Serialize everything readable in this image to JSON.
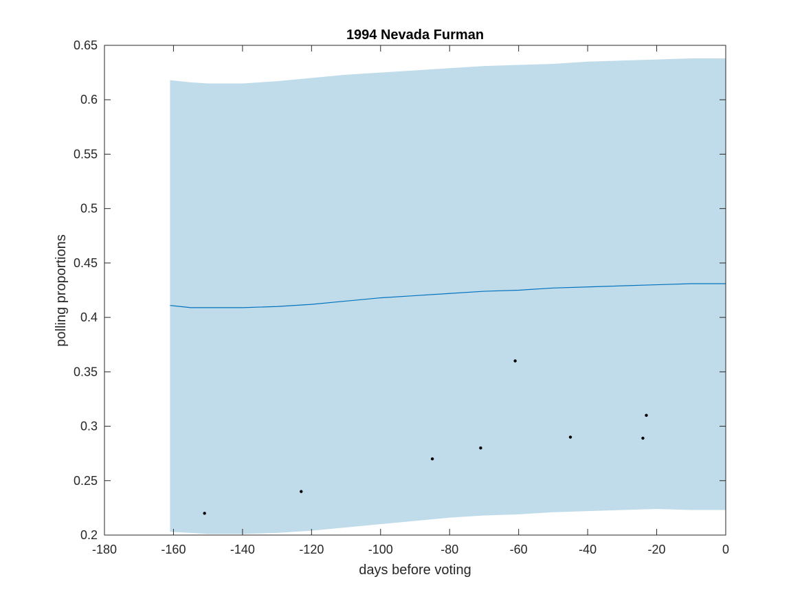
{
  "chart_data": {
    "type": "line",
    "title": "1994 Nevada Furman",
    "xlabel": "days before voting",
    "ylabel": "polling proportions",
    "xlim": [
      -180,
      0
    ],
    "ylim": [
      0.2,
      0.65
    ],
    "xticks": [
      "-180",
      "-160",
      "-140",
      "-120",
      "-100",
      "-80",
      "-60",
      "-40",
      "-20",
      "0"
    ],
    "yticks": [
      "0.2",
      "0.25",
      "0.3",
      "0.35",
      "0.4",
      "0.45",
      "0.5",
      "0.55",
      "0.6",
      "0.65"
    ],
    "grid": false,
    "colors": {
      "band": "#c0dcea",
      "line": "#0072bd",
      "points": "#000000",
      "axes": "#262626"
    },
    "series": [
      {
        "type": "band",
        "x": [
          -161,
          -155,
          -150,
          -140,
          -130,
          -120,
          -110,
          -100,
          -90,
          -80,
          -70,
          -60,
          -50,
          -40,
          -30,
          -20,
          -10,
          0
        ],
        "upper": [
          0.618,
          0.616,
          0.615,
          0.615,
          0.617,
          0.62,
          0.623,
          0.625,
          0.627,
          0.629,
          0.631,
          0.632,
          0.633,
          0.635,
          0.636,
          0.637,
          0.638,
          0.638
        ],
        "lower": [
          0.203,
          0.202,
          0.201,
          0.201,
          0.202,
          0.204,
          0.207,
          0.21,
          0.213,
          0.216,
          0.218,
          0.219,
          0.221,
          0.222,
          0.223,
          0.224,
          0.223,
          0.223
        ]
      },
      {
        "type": "line",
        "x": [
          -161,
          -155,
          -150,
          -140,
          -130,
          -120,
          -110,
          -100,
          -90,
          -80,
          -70,
          -60,
          -50,
          -40,
          -30,
          -20,
          -10,
          0
        ],
        "y": [
          0.411,
          0.409,
          0.409,
          0.409,
          0.41,
          0.412,
          0.415,
          0.418,
          0.42,
          0.422,
          0.424,
          0.425,
          0.427,
          0.428,
          0.429,
          0.43,
          0.431,
          0.431
        ]
      },
      {
        "type": "scatter",
        "x": [
          -151,
          -123,
          -85,
          -71,
          -61,
          -45,
          -24,
          -23
        ],
        "y": [
          0.22,
          0.24,
          0.27,
          0.28,
          0.36,
          0.29,
          0.289,
          0.31
        ]
      }
    ]
  }
}
